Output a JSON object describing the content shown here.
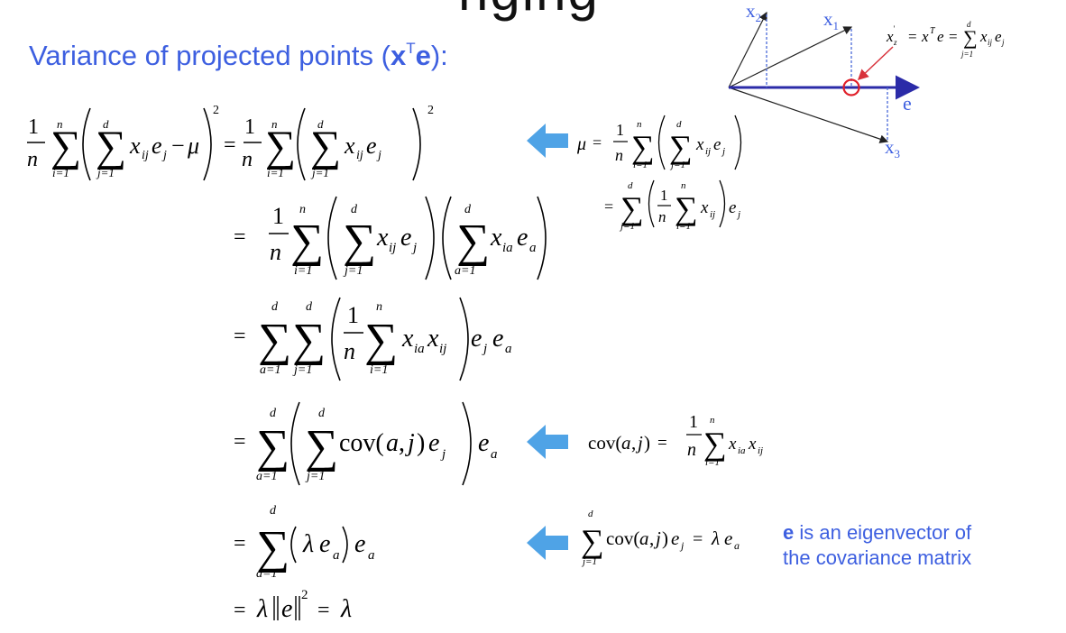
{
  "slide": {
    "cutoff_title": "nging",
    "heading": {
      "prefix": "Variance of projected points (",
      "bold_x": "x",
      "sup_T": "T",
      "bold_e": "e",
      "suffix": "):"
    },
    "diagram_labels": {
      "x2": "x2",
      "x1": "x1",
      "x3": "x3",
      "e": "e",
      "projection_formula": "x'z = xTe = Σ xij ej"
    },
    "equations": [
      "1/n Σ(i=1..n) ( Σ(j=1..d) xij ej − μ )^2 = 1/n Σ(i=1..n) ( Σ(j=1..d) xij ej )^2",
      "= 1/n Σ(i=1..n) ( Σ(j=1..d) xij ej ) ( Σ(a=1..d) xia ea )",
      "= Σ(a=1..d) Σ(j=1..d) ( 1/n Σ(i=1..n) xia xij ) ej ea",
      "= Σ(a=1..d) ( Σ(j=1..d) cov(a,j) ej ) ea",
      "= Σ(a=1..d) ( λ ea ) ea",
      "= λ ||e||^2 = λ"
    ],
    "side_formulas": {
      "mu": "μ = 1/n Σ(i=1..n) ( Σ(j=1..d) xij ej ) = Σ(j=1..d) ( 1/n Σ(i=1..n) xij ) ej",
      "cov": "cov(a,j) = 1/n Σ(i=1..n) xia xij",
      "eigen": "Σ(j=1..d) cov(a,j) ej = λ ea"
    },
    "note": {
      "bold": "e",
      "line1_rest": " is an eigenvector of",
      "line2": "the covariance matrix"
    },
    "colors": {
      "heading_blue": "#3d5fe0",
      "axis_blue": "#2b2ba8",
      "arrow_blue": "#4fa3e6",
      "circle_red": "#e0202a",
      "pointer_red": "#d8313a"
    }
  }
}
